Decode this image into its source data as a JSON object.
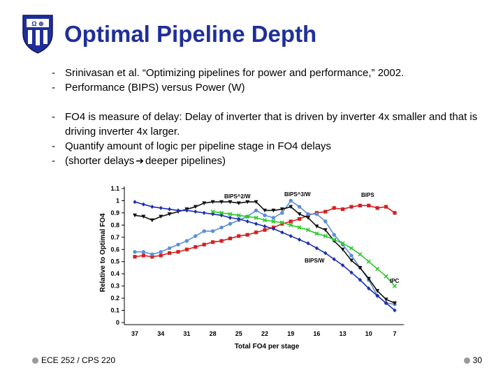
{
  "slide": {
    "title": "Optimal Pipeline Depth",
    "logo_icon": "shield-crest-icon",
    "logo_text": "Ω ⊕"
  },
  "bullets": [
    "Srinivasan et al. “Optimizing pipelines for power and performance,” 2002.",
    "Performance (BIPS) versus Power (W)",
    "FO4 is measure of delay: Delay of inverter that is driven by inverter 4x smaller and that is driving inverter 4x larger.",
    "Quantify amount of logic per pipeline stage in FO4 delays"
  ],
  "last_bullet": {
    "prefix": "(shorter delays",
    "suffix": "deeper pipelines)",
    "arrow_icon": "right-arrow-icon"
  },
  "footer": {
    "course": "ECE 252 / CPS 220",
    "page": "30"
  },
  "chart_data": {
    "type": "line",
    "xlabel": "Total FO4 per stage",
    "ylabel": "Relative to Optimal FO4",
    "categories": [
      "37",
      "34",
      "31",
      "28",
      "25",
      "22",
      "19",
      "16",
      "13",
      "10",
      "7"
    ],
    "ylim": [
      0,
      1.1
    ],
    "yticks": [
      "0",
      "0.1",
      "0.2",
      "0.3",
      "0.4",
      "0.5",
      "0.6",
      "0.7",
      "0.8",
      "0.9",
      "1",
      "1.1"
    ],
    "series": [
      {
        "name": "BIPS",
        "color": "#d42020",
        "marker": "square",
        "x": [
          37,
          36,
          35,
          34,
          33,
          32,
          31,
          30,
          29,
          28,
          27,
          26,
          25,
          24,
          23,
          22,
          21,
          20,
          19,
          18,
          17,
          16,
          15,
          14,
          13,
          12,
          11,
          10,
          9,
          8,
          7
        ],
        "y": [
          0.54,
          0.55,
          0.54,
          0.55,
          0.57,
          0.58,
          0.6,
          0.62,
          0.64,
          0.66,
          0.67,
          0.69,
          0.71,
          0.72,
          0.74,
          0.76,
          0.78,
          0.81,
          0.83,
          0.85,
          0.88,
          0.9,
          0.91,
          0.94,
          0.93,
          0.95,
          0.96,
          0.96,
          0.94,
          0.95,
          0.9
        ]
      },
      {
        "name": "BIPS^3/W",
        "color": "#5b8fd6",
        "marker": "circle",
        "x": [
          37,
          36,
          35,
          34,
          33,
          32,
          31,
          30,
          29,
          28,
          27,
          26,
          25,
          24,
          23,
          22,
          21,
          20,
          19,
          18,
          17,
          16,
          15,
          14,
          13,
          12,
          11,
          10,
          9,
          8,
          7
        ],
        "y": [
          0.58,
          0.58,
          0.56,
          0.58,
          0.61,
          0.64,
          0.67,
          0.71,
          0.75,
          0.75,
          0.78,
          0.81,
          0.84,
          0.87,
          0.92,
          0.88,
          0.86,
          0.9,
          1.0,
          0.95,
          0.89,
          0.89,
          0.83,
          0.72,
          0.64,
          0.55,
          0.45,
          0.35,
          0.22,
          0.16,
          0.15
        ]
      },
      {
        "name": "BIPS^2/W",
        "color": "#111111",
        "marker": "triangle-down",
        "x": [
          37,
          36,
          35,
          34,
          33,
          32,
          31,
          30,
          29,
          28,
          27,
          26,
          25,
          24,
          23,
          22,
          21,
          20,
          19,
          18,
          17,
          16,
          15,
          14,
          13,
          12,
          11,
          10,
          9,
          8,
          7
        ],
        "y": [
          0.88,
          0.87,
          0.84,
          0.87,
          0.89,
          0.91,
          0.93,
          0.95,
          0.98,
          0.99,
          0.99,
          0.99,
          0.98,
          0.99,
          0.99,
          0.92,
          0.92,
          0.93,
          0.95,
          0.89,
          0.86,
          0.79,
          0.76,
          0.67,
          0.6,
          0.51,
          0.45,
          0.36,
          0.26,
          0.19,
          0.16
        ]
      },
      {
        "name": "BIPS/W",
        "color": "#1c2fb0",
        "marker": "diamond",
        "x": [
          37,
          36,
          35,
          34,
          33,
          32,
          31,
          30,
          29,
          28,
          27,
          26,
          25,
          24,
          23,
          22,
          21,
          20,
          19,
          18,
          17,
          16,
          15,
          14,
          13,
          12,
          11,
          10,
          9,
          8,
          7
        ],
        "y": [
          0.99,
          0.97,
          0.95,
          0.94,
          0.93,
          0.92,
          0.92,
          0.91,
          0.9,
          0.89,
          0.88,
          0.86,
          0.85,
          0.83,
          0.81,
          0.79,
          0.77,
          0.74,
          0.71,
          0.68,
          0.65,
          0.61,
          0.57,
          0.52,
          0.47,
          0.41,
          0.35,
          0.28,
          0.22,
          0.16,
          0.1
        ]
      },
      {
        "name": "IPC",
        "color": "#2ec82e",
        "marker": "cross",
        "x": [
          28,
          27,
          26,
          25,
          24,
          23,
          22,
          21,
          20,
          19,
          18,
          17,
          16,
          15,
          14,
          13,
          12,
          11,
          10,
          9,
          8,
          7
        ],
        "y": [
          0.91,
          0.9,
          0.89,
          0.88,
          0.87,
          0.86,
          0.84,
          0.83,
          0.82,
          0.8,
          0.78,
          0.76,
          0.73,
          0.71,
          0.68,
          0.65,
          0.61,
          0.56,
          0.5,
          0.44,
          0.38,
          0.3
        ]
      }
    ],
    "annotations": [
      "BIPS^2/W",
      "BIPS^3/W",
      "BIPS",
      "BIPS/W",
      "IPC"
    ]
  }
}
